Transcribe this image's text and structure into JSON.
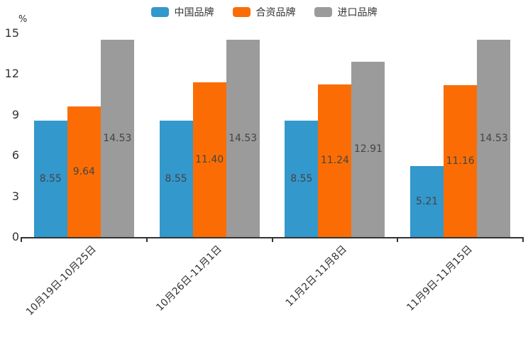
{
  "chart_data": {
    "type": "bar",
    "title": "",
    "unit_label": "%",
    "categories": [
      "10月19日-10月25日",
      "10月26日-11月1日",
      "11月2日-11月8日",
      "11月9日-11月15日"
    ],
    "series": [
      {
        "name": "中国品牌",
        "color": "#3398CC",
        "values": [
          "8.55",
          "8.55",
          "8.55",
          "5.21"
        ]
      },
      {
        "name": "合资品牌",
        "color": "#FB6D04",
        "values": [
          "9.64",
          "11.40",
          "11.24",
          "11.16"
        ]
      },
      {
        "name": "进口品牌",
        "color": "#9B9B9B",
        "values": [
          "14.53",
          "14.53",
          "12.91",
          "14.53"
        ]
      }
    ],
    "yticks": [
      "0",
      "3",
      "6",
      "9",
      "12",
      "15"
    ],
    "ylim": [
      0,
      15
    ],
    "grid": false,
    "legend_position": "top",
    "value_labels": "inside-center",
    "x_label_rotation_deg": 45
  }
}
